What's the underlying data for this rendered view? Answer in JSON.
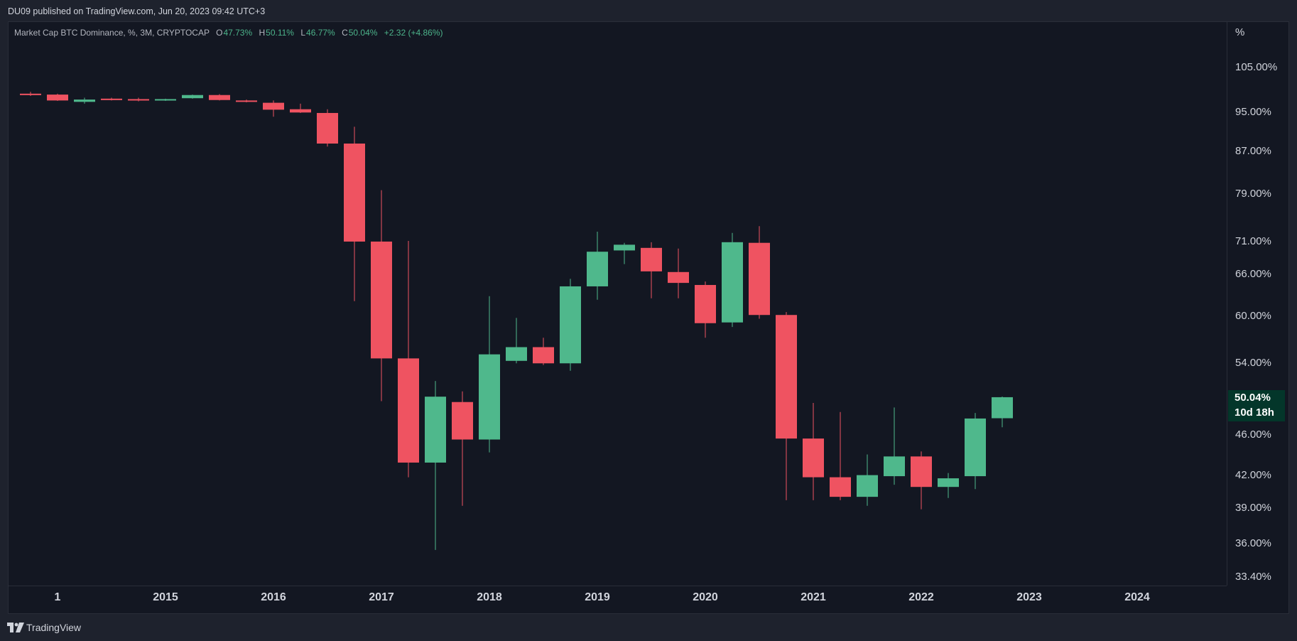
{
  "header": {
    "published": "DU09 published on TradingView.com, Jun 20, 2023 09:42 UTC+3"
  },
  "legend": {
    "symbol": "Market Cap BTC Dominance, %, 3M, CRYPTOCAP",
    "open_label": "O",
    "open": "47.73%",
    "high_label": "H",
    "high": "50.11%",
    "low_label": "L",
    "low": "46.77%",
    "close_label": "C",
    "close": "50.04%",
    "change": "+2.32 (+4.86%)"
  },
  "price_axis": {
    "unit": "%",
    "last_price": "50.04%",
    "countdown": "10d 18h"
  },
  "footer": {
    "brand": "TradingView"
  },
  "colors": {
    "up": "#4fb88c",
    "down": "#ef5361",
    "background": "#131722",
    "last_price_bg": "#03362a"
  },
  "chart_data": {
    "type": "candlestick",
    "interval": "3M",
    "y_scale": "log",
    "ylim": [
      33.4,
      110
    ],
    "y_ticks": [
      {
        "value": 105,
        "label": "105.00%"
      },
      {
        "value": 95,
        "label": "95.00%"
      },
      {
        "value": 87,
        "label": "87.00%"
      },
      {
        "value": 79,
        "label": "79.00%"
      },
      {
        "value": 71,
        "label": "71.00%"
      },
      {
        "value": 66,
        "label": "66.00%"
      },
      {
        "value": 60,
        "label": "60.00%"
      },
      {
        "value": 54,
        "label": "54.00%"
      },
      {
        "value": 46,
        "label": "46.00%"
      },
      {
        "value": 42,
        "label": "42.00%"
      },
      {
        "value": 39,
        "label": "39.00%"
      },
      {
        "value": 36,
        "label": "36.00%"
      },
      {
        "value": 33.4,
        "label": "33.40%"
      }
    ],
    "x_ticks": [
      {
        "value": "2014-01",
        "label": "1"
      },
      {
        "value": "2015-01",
        "label": "2015"
      },
      {
        "value": "2016-01",
        "label": "2016"
      },
      {
        "value": "2017-01",
        "label": "2017"
      },
      {
        "value": "2018-01",
        "label": "2018"
      },
      {
        "value": "2019-01",
        "label": "2019"
      },
      {
        "value": "2020-01",
        "label": "2020"
      },
      {
        "value": "2021-01",
        "label": "2021"
      },
      {
        "value": "2022-01",
        "label": "2022"
      },
      {
        "value": "2023-01",
        "label": "2023"
      },
      {
        "value": "2024-01",
        "label": "2024"
      }
    ],
    "candles": [
      {
        "date": "2013-10",
        "open": 99.0,
        "high": 99.4,
        "low": 98.5,
        "close": 98.8
      },
      {
        "date": "2014-01",
        "open": 98.8,
        "high": 99.0,
        "low": 97.4,
        "close": 97.5
      },
      {
        "date": "2014-04",
        "open": 97.2,
        "high": 98.1,
        "low": 96.8,
        "close": 97.7
      },
      {
        "date": "2014-07",
        "open": 97.9,
        "high": 98.1,
        "low": 97.5,
        "close": 97.8
      },
      {
        "date": "2014-10",
        "open": 97.8,
        "high": 98.1,
        "low": 97.3,
        "close": 97.7
      },
      {
        "date": "2015-01",
        "open": 97.5,
        "high": 97.9,
        "low": 97.4,
        "close": 97.8
      },
      {
        "date": "2015-04",
        "open": 98.0,
        "high": 98.8,
        "low": 97.9,
        "close": 98.7
      },
      {
        "date": "2015-07",
        "open": 98.7,
        "high": 98.9,
        "low": 97.5,
        "close": 97.6
      },
      {
        "date": "2015-10",
        "open": 97.5,
        "high": 97.7,
        "low": 97.1,
        "close": 97.4
      },
      {
        "date": "2016-01",
        "open": 97.0,
        "high": 97.5,
        "low": 94.0,
        "close": 95.5
      },
      {
        "date": "2016-04",
        "open": 95.6,
        "high": 96.8,
        "low": 94.8,
        "close": 94.9
      },
      {
        "date": "2016-07",
        "open": 94.8,
        "high": 95.6,
        "low": 87.9,
        "close": 88.5
      },
      {
        "date": "2016-10",
        "open": 88.5,
        "high": 91.9,
        "low": 62.1,
        "close": 71.0
      },
      {
        "date": "2017-01",
        "open": 71.0,
        "high": 79.7,
        "low": 49.6,
        "close": 54.6
      },
      {
        "date": "2017-04",
        "open": 54.6,
        "high": 71.1,
        "low": 41.8,
        "close": 43.2
      },
      {
        "date": "2017-07",
        "open": 43.2,
        "high": 51.9,
        "low": 35.5,
        "close": 50.1
      },
      {
        "date": "2017-10",
        "open": 49.5,
        "high": 50.7,
        "low": 39.2,
        "close": 45.5
      },
      {
        "date": "2018-01",
        "open": 45.5,
        "high": 62.8,
        "low": 44.2,
        "close": 55.1
      },
      {
        "date": "2018-04",
        "open": 54.3,
        "high": 59.8,
        "low": 54.0,
        "close": 56.0
      },
      {
        "date": "2018-07",
        "open": 56.0,
        "high": 57.2,
        "low": 53.8,
        "close": 54.0
      },
      {
        "date": "2018-10",
        "open": 54.0,
        "high": 65.3,
        "low": 53.1,
        "close": 64.2
      },
      {
        "date": "2019-01",
        "open": 64.2,
        "high": 72.6,
        "low": 62.3,
        "close": 69.4
      },
      {
        "date": "2019-04",
        "open": 69.6,
        "high": 70.8,
        "low": 67.5,
        "close": 70.5
      },
      {
        "date": "2019-07",
        "open": 70.0,
        "high": 70.9,
        "low": 62.5,
        "close": 66.4
      },
      {
        "date": "2019-10",
        "open": 66.3,
        "high": 69.9,
        "low": 62.5,
        "close": 64.7
      },
      {
        "date": "2020-01",
        "open": 64.4,
        "high": 64.9,
        "low": 57.2,
        "close": 59.1
      },
      {
        "date": "2020-04",
        "open": 59.2,
        "high": 72.4,
        "low": 58.6,
        "close": 70.9
      },
      {
        "date": "2020-07",
        "open": 70.8,
        "high": 73.5,
        "low": 59.7,
        "close": 60.2
      },
      {
        "date": "2020-10",
        "open": 60.2,
        "high": 60.6,
        "low": 39.7,
        "close": 45.6
      },
      {
        "date": "2021-01",
        "open": 45.6,
        "high": 49.4,
        "low": 39.7,
        "close": 41.8
      },
      {
        "date": "2021-04",
        "open": 41.8,
        "high": 48.4,
        "low": 39.7,
        "close": 40.0
      },
      {
        "date": "2021-07",
        "open": 40.0,
        "high": 44.0,
        "low": 39.2,
        "close": 42.0
      },
      {
        "date": "2021-10",
        "open": 41.9,
        "high": 48.9,
        "low": 41.1,
        "close": 43.8
      },
      {
        "date": "2022-01",
        "open": 43.8,
        "high": 44.3,
        "low": 38.9,
        "close": 40.9
      },
      {
        "date": "2022-04",
        "open": 40.9,
        "high": 42.2,
        "low": 39.9,
        "close": 41.7
      },
      {
        "date": "2022-07",
        "open": 41.9,
        "high": 48.3,
        "low": 40.7,
        "close": 47.7
      },
      {
        "date": "2022-10",
        "open": 47.73,
        "high": 50.11,
        "low": 46.77,
        "close": 50.04
      }
    ]
  }
}
